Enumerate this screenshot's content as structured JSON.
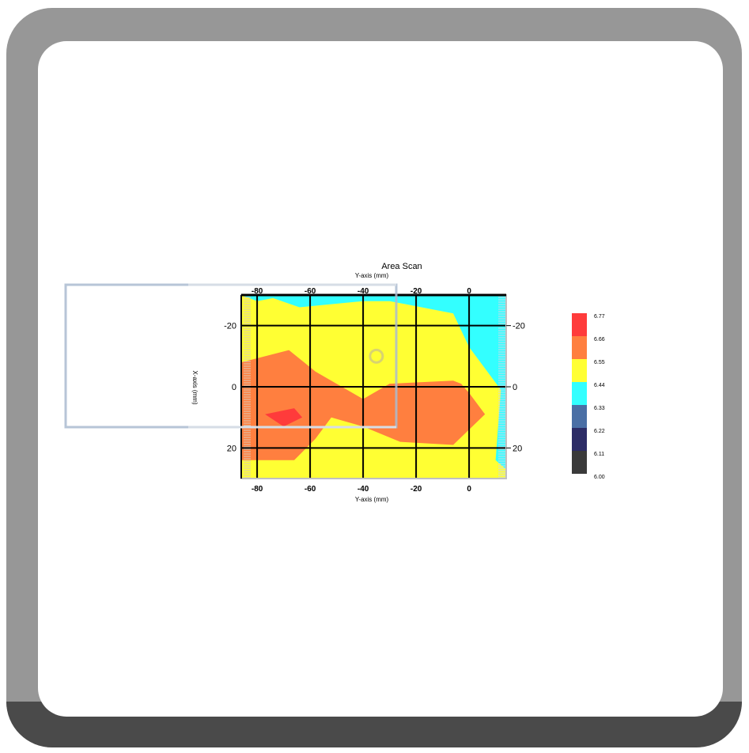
{
  "chart_data": {
    "type": "heatmap",
    "title": "Area Scan",
    "xlabel_top": "Y-axis (mm)",
    "xlabel_bottom": "Y-axis (mm)",
    "ylabel": "X-axis (mm)",
    "colorbar_label": "",
    "xlim": [
      -86,
      14
    ],
    "ylim": [
      -30,
      30
    ],
    "x_ticks": [
      -80,
      -60,
      -40,
      -20,
      0
    ],
    "y_ticks": [
      -20,
      0,
      20
    ],
    "x_tick_labels": [
      "-80",
      "-60",
      "-40",
      "-20",
      "0"
    ],
    "y_tick_labels": [
      "-20",
      "0",
      "20"
    ],
    "y_tick_labels_right": [
      "-20",
      "0",
      "20"
    ],
    "grid": true,
    "colorbar": {
      "labels": [
        "6.77",
        "6.66",
        "6.55",
        "6.44",
        "6.33",
        "6.22",
        "6.11",
        "6.00"
      ],
      "colors": [
        "#ff3b3b",
        "#ff7f3f",
        "#ffff33",
        "#33ffff",
        "#4a6fa5",
        "#2c2c66",
        "#3a3a3a"
      ]
    },
    "regions": [
      {
        "level": "6.44",
        "color": "#33ffff",
        "polygon": [
          [
            -86,
            -30
          ],
          [
            14,
            -30
          ],
          [
            14,
            27
          ],
          [
            10,
            24
          ],
          [
            12,
            1
          ],
          [
            0,
            -13
          ],
          [
            -6,
            -24
          ],
          [
            -30,
            -28
          ],
          [
            -40,
            -28
          ],
          [
            -64,
            -26
          ],
          [
            -74,
            -29
          ],
          [
            -80,
            -28
          ],
          [
            -86,
            -30
          ]
        ]
      },
      {
        "level": "6.66",
        "color": "#ff7f3f",
        "polygon": [
          [
            -86,
            -8
          ],
          [
            -68,
            -12
          ],
          [
            -58,
            -5
          ],
          [
            -40,
            4
          ],
          [
            -30,
            -1
          ],
          [
            -6,
            -2
          ],
          [
            -3,
            -1
          ],
          [
            0,
            2
          ],
          [
            6,
            9
          ],
          [
            -6,
            19
          ],
          [
            -26,
            18
          ],
          [
            -40,
            13
          ],
          [
            -52,
            10
          ],
          [
            -58,
            17
          ],
          [
            -66,
            24
          ],
          [
            -86,
            24
          ]
        ]
      },
      {
        "level": "6.77",
        "color": "#ff3b3b",
        "polygon": [
          [
            -77,
            9
          ],
          [
            -66,
            7
          ],
          [
            -63,
            10
          ],
          [
            -70,
            13
          ]
        ]
      }
    ],
    "overlay_marker": {
      "x": -35,
      "y": -10
    }
  }
}
